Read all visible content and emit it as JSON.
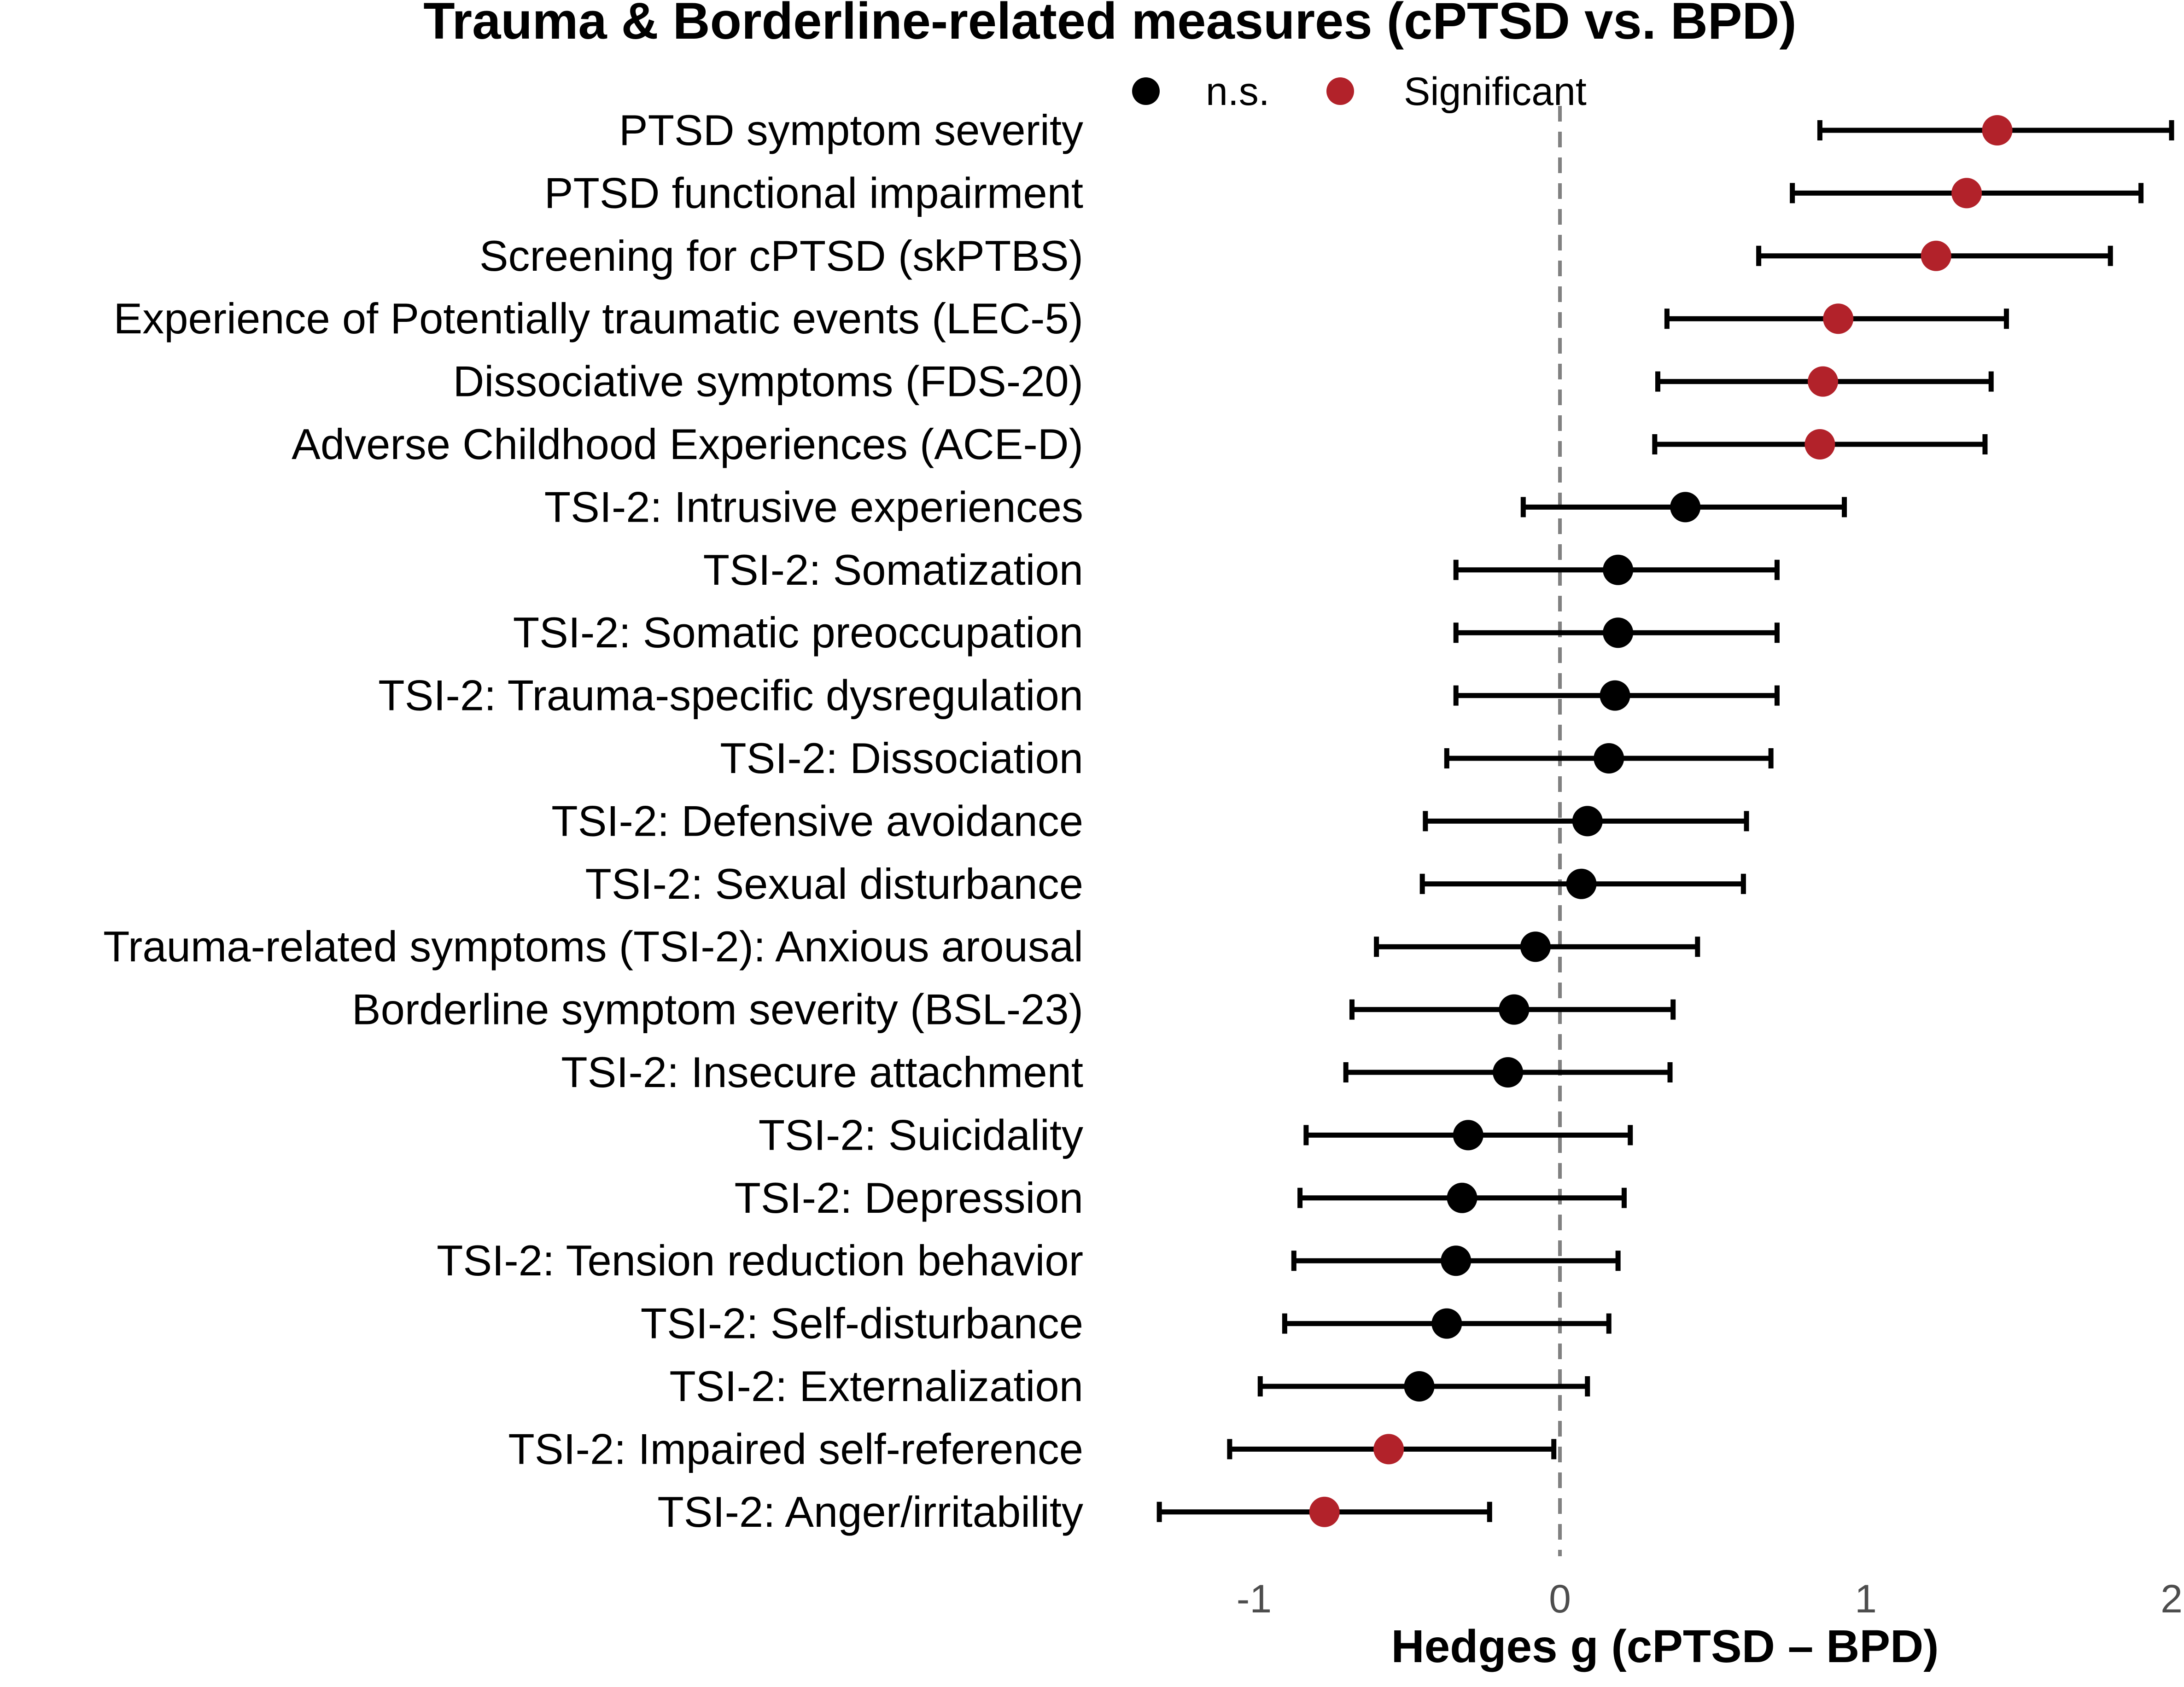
{
  "chart_data": {
    "type": "forest",
    "title": "Trauma & Borderline-related measures (cPTSD vs. BPD)",
    "xlabel": "Hedges g (cPTSD – BPD)",
    "ylabel": "",
    "xlim": [
      -1.3,
      2.0
    ],
    "xticks": [
      -1,
      0,
      1,
      2
    ],
    "xtick_labels": [
      "-1",
      "0",
      "1",
      "2"
    ],
    "reference_line": 0,
    "grid": false,
    "legend": {
      "placement": "top",
      "entries": [
        {
          "label": "n.s.",
          "color": "#000000"
        },
        {
          "label": "Significant",
          "color": "#b2222a"
        }
      ]
    },
    "rows": [
      {
        "label": "PTSD symptom severity",
        "estimate": 1.43,
        "lower": 0.85,
        "upper": 2.0,
        "significant": true
      },
      {
        "label": "PTSD functional impairment",
        "estimate": 1.33,
        "lower": 0.76,
        "upper": 1.9,
        "significant": true
      },
      {
        "label": "Screening for cPTSD (skPTBS)",
        "estimate": 1.23,
        "lower": 0.65,
        "upper": 1.8,
        "significant": true
      },
      {
        "label": "Experience of Potentially traumatic events (LEC-5)",
        "estimate": 0.91,
        "lower": 0.35,
        "upper": 1.46,
        "significant": true
      },
      {
        "label": "Dissociative symptoms (FDS-20)",
        "estimate": 0.86,
        "lower": 0.32,
        "upper": 1.41,
        "significant": true
      },
      {
        "label": "Adverse Childhood Experiences (ACE-D)",
        "estimate": 0.85,
        "lower": 0.31,
        "upper": 1.39,
        "significant": true
      },
      {
        "label": "TSI-2: Intrusive experiences",
        "estimate": 0.41,
        "lower": -0.12,
        "upper": 0.93,
        "significant": false
      },
      {
        "label": "TSI-2: Somatization",
        "estimate": 0.19,
        "lower": -0.34,
        "upper": 0.71,
        "significant": false
      },
      {
        "label": "TSI-2: Somatic preoccupation",
        "estimate": 0.19,
        "lower": -0.34,
        "upper": 0.71,
        "significant": false
      },
      {
        "label": "TSI-2: Trauma-specific dysregulation",
        "estimate": 0.18,
        "lower": -0.34,
        "upper": 0.71,
        "significant": false
      },
      {
        "label": "TSI-2: Dissociation",
        "estimate": 0.16,
        "lower": -0.37,
        "upper": 0.69,
        "significant": false
      },
      {
        "label": "TSI-2: Defensive avoidance",
        "estimate": 0.09,
        "lower": -0.44,
        "upper": 0.61,
        "significant": false
      },
      {
        "label": "TSI-2: Sexual disturbance",
        "estimate": 0.07,
        "lower": -0.45,
        "upper": 0.6,
        "significant": false
      },
      {
        "label": "Trauma-related symptoms (TSI-2): Anxious arousal",
        "estimate": -0.08,
        "lower": -0.6,
        "upper": 0.45,
        "significant": false
      },
      {
        "label": "Borderline symptom severity (BSL-23)",
        "estimate": -0.15,
        "lower": -0.68,
        "upper": 0.37,
        "significant": false
      },
      {
        "label": "TSI-2: Insecure attachment",
        "estimate": -0.17,
        "lower": -0.7,
        "upper": 0.36,
        "significant": false
      },
      {
        "label": "TSI-2: Suicidality",
        "estimate": -0.3,
        "lower": -0.83,
        "upper": 0.23,
        "significant": false
      },
      {
        "label": "TSI-2: Depression",
        "estimate": -0.32,
        "lower": -0.85,
        "upper": 0.21,
        "significant": false
      },
      {
        "label": "TSI-2: Tension reduction behavior",
        "estimate": -0.34,
        "lower": -0.87,
        "upper": 0.19,
        "significant": false
      },
      {
        "label": "TSI-2: Self-disturbance",
        "estimate": -0.37,
        "lower": -0.9,
        "upper": 0.16,
        "significant": false
      },
      {
        "label": "TSI-2: Externalization",
        "estimate": -0.46,
        "lower": -0.98,
        "upper": 0.09,
        "significant": false
      },
      {
        "label": "TSI-2: Impaired self-reference",
        "estimate": -0.56,
        "lower": -1.08,
        "upper": -0.02,
        "significant": true
      },
      {
        "label": "TSI-2: Anger/irritability",
        "estimate": -0.77,
        "lower": -1.31,
        "upper": -0.23,
        "significant": true
      }
    ]
  }
}
